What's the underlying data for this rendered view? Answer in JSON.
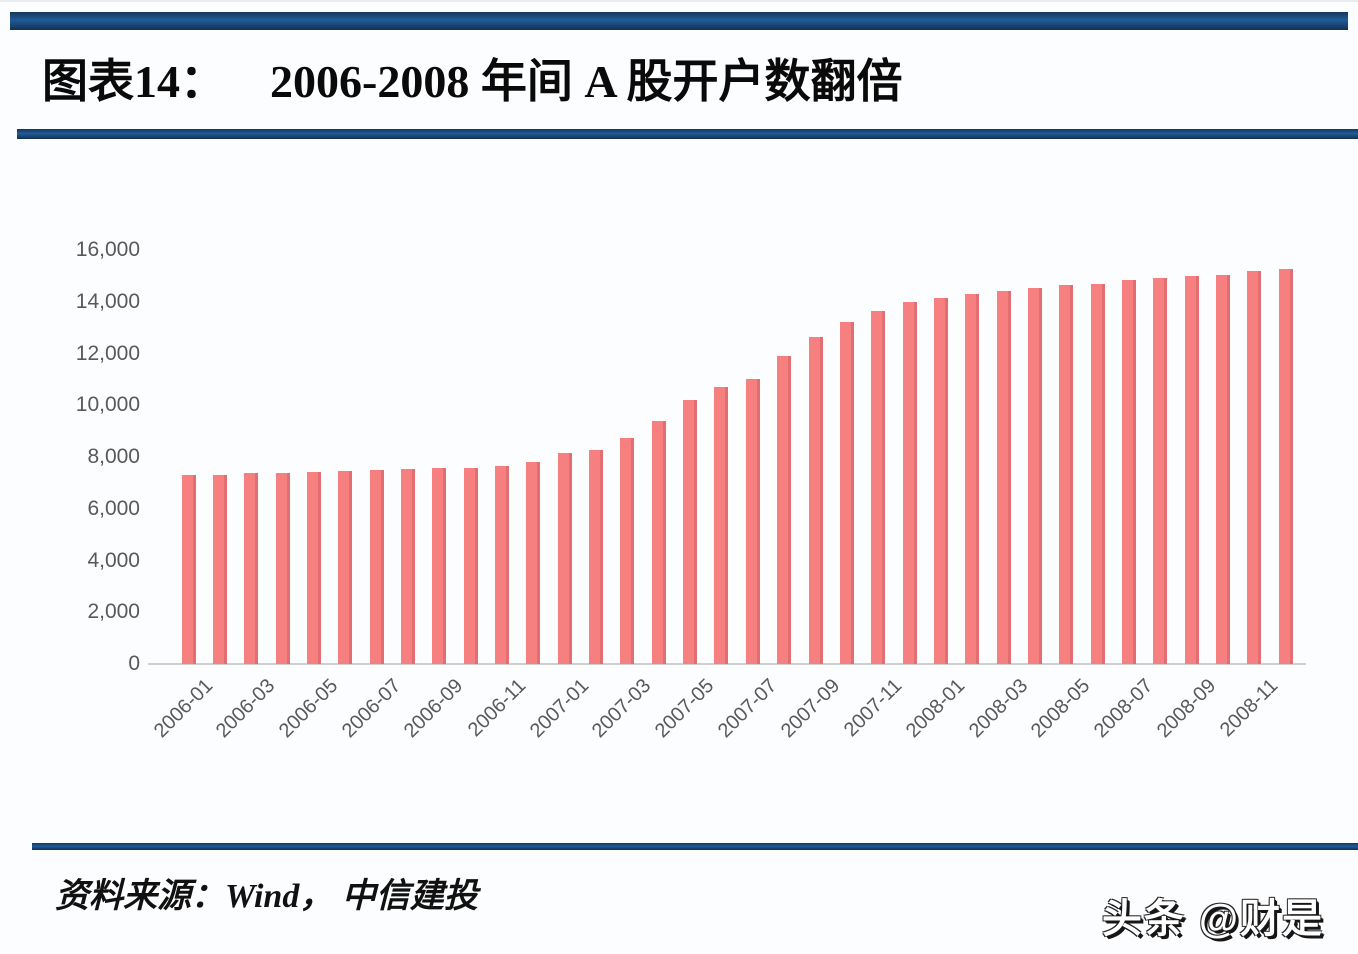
{
  "header": {
    "figure_label": "图表14：",
    "figure_title": "2006-2008 年间 A 股开户数翻倍"
  },
  "chart_data": {
    "type": "bar",
    "title": "2006-2008 年间 A 股开户数翻倍",
    "categories": [
      "2006-01",
      "2006-02",
      "2006-03",
      "2006-04",
      "2006-05",
      "2006-06",
      "2006-07",
      "2006-08",
      "2006-09",
      "2006-10",
      "2006-11",
      "2006-12",
      "2007-01",
      "2007-02",
      "2007-03",
      "2007-04",
      "2007-05",
      "2007-06",
      "2007-07",
      "2007-08",
      "2007-09",
      "2007-10",
      "2007-11",
      "2007-12",
      "2008-01",
      "2008-02",
      "2008-03",
      "2008-04",
      "2008-05",
      "2008-06",
      "2008-07",
      "2008-08",
      "2008-09",
      "2008-10",
      "2008-11",
      "2008-12"
    ],
    "values": [
      7300,
      7320,
      7370,
      7380,
      7410,
      7460,
      7510,
      7530,
      7560,
      7570,
      7640,
      7800,
      8150,
      8270,
      8750,
      9400,
      10200,
      10720,
      11020,
      11920,
      12650,
      13230,
      13650,
      13980,
      14150,
      14300,
      14400,
      14550,
      14650,
      14700,
      14850,
      14900,
      15000,
      15050,
      15200,
      15250
    ],
    "x_tick_labels": [
      "2006-01",
      "2006-03",
      "2006-05",
      "2006-07",
      "2006-09",
      "2006-11",
      "2007-01",
      "2007-03",
      "2007-05",
      "2007-07",
      "2007-09",
      "2007-11",
      "2008-01",
      "2008-03",
      "2008-05",
      "2008-07",
      "2008-09",
      "2008-11"
    ],
    "y_ticks": [
      0,
      2000,
      4000,
      6000,
      8000,
      10000,
      12000,
      14000,
      16000
    ],
    "y_tick_labels": [
      "0",
      "2,000",
      "4,000",
      "6,000",
      "8,000",
      "10,000",
      "12,000",
      "14,000",
      "16,000"
    ],
    "ylim": [
      0,
      16000
    ],
    "xlabel": "",
    "ylabel": "",
    "grid": "off",
    "legend": "none",
    "bar_color": "#f4797c",
    "axis_label_color": "#595959"
  },
  "footer": {
    "source": "资料来源：Wind， 中信建投",
    "watermark": "头条 @财是"
  },
  "colors": {
    "frame_navy": "#17375d",
    "rule_blue": "#1f5c99",
    "accent_bar": "#f4797c"
  }
}
